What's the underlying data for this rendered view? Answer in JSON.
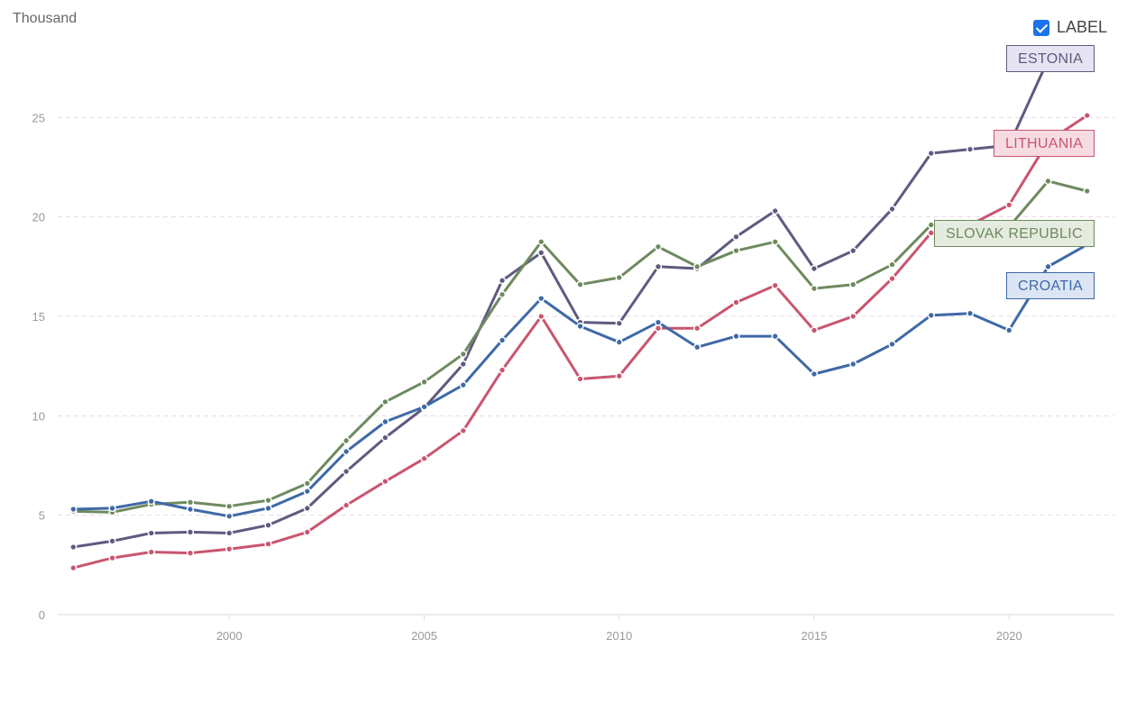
{
  "unit_label": "Thousand",
  "toggle": {
    "label": "LABEL",
    "checked": true
  },
  "chart_data": {
    "type": "line",
    "y_unit": "Thousand",
    "x": [
      1996,
      1997,
      1998,
      1999,
      2000,
      2001,
      2002,
      2003,
      2004,
      2005,
      2006,
      2007,
      2008,
      2009,
      2010,
      2011,
      2012,
      2013,
      2014,
      2015,
      2016,
      2017,
      2018,
      2019,
      2020,
      2021,
      2022
    ],
    "xlim": [
      1995.6,
      2022.7
    ],
    "ylim": [
      0,
      30
    ],
    "x_ticks": [
      2000,
      2005,
      2010,
      2015,
      2020
    ],
    "y_ticks": [
      0,
      5,
      10,
      15,
      20,
      25
    ],
    "grid": "horizontal-dashed",
    "series": [
      {
        "name": "ESTONIA",
        "color": "#5f5a7f",
        "tag_bg": "#e6e4f2",
        "values": [
          3.4,
          3.7,
          4.1,
          4.15,
          4.1,
          4.5,
          5.35,
          7.2,
          8.9,
          10.4,
          12.6,
          16.8,
          18.2,
          14.7,
          14.65,
          17.5,
          17.4,
          19.0,
          20.3,
          17.4,
          18.3,
          20.4,
          23.2,
          23.4,
          23.6,
          27.9,
          28.3
        ]
      },
      {
        "name": "LITHUANIA",
        "color": "#c9556f",
        "tag_bg": "#f7dbe2",
        "values": [
          2.35,
          2.85,
          3.15,
          3.1,
          3.3,
          3.55,
          4.15,
          5.5,
          6.7,
          7.85,
          9.25,
          12.3,
          15.0,
          11.85,
          12.0,
          14.4,
          14.4,
          15.7,
          16.55,
          14.3,
          15.0,
          16.9,
          19.2,
          19.6,
          20.6,
          23.8,
          25.1
        ]
      },
      {
        "name": "SLOVAK REPUBLIC",
        "color": "#6e8a5f",
        "tag_bg": "#e5ebdf",
        "values": [
          5.2,
          5.15,
          5.55,
          5.65,
          5.45,
          5.75,
          6.6,
          8.75,
          10.7,
          11.7,
          13.1,
          16.1,
          18.75,
          16.6,
          16.95,
          18.5,
          17.5,
          18.3,
          18.75,
          16.4,
          16.6,
          17.6,
          19.6,
          19.4,
          19.5,
          21.8,
          21.3
        ]
      },
      {
        "name": "CROATIA",
        "color": "#3f69a6",
        "tag_bg": "#dbe5f3",
        "values": [
          5.3,
          5.35,
          5.7,
          5.3,
          4.95,
          5.35,
          6.2,
          8.2,
          9.7,
          10.45,
          11.55,
          13.8,
          15.9,
          14.5,
          13.7,
          14.7,
          13.45,
          14.0,
          14.0,
          12.1,
          12.6,
          13.6,
          15.05,
          15.15,
          14.3,
          17.5,
          18.6
        ]
      }
    ]
  }
}
